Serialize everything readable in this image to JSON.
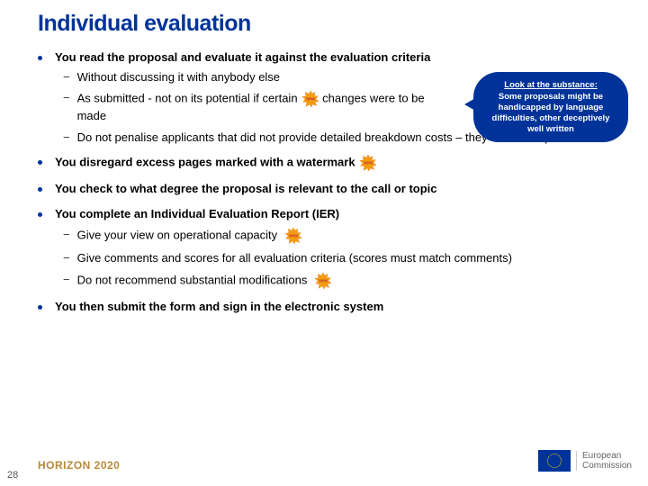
{
  "title": "Individual evaluation",
  "bullets": [
    {
      "text": "You read the proposal and evaluate it against the evaluation criteria",
      "subs": [
        {
          "text": "Without discussing it with anybody else",
          "new": false
        },
        {
          "text": "As submitted - not on its potential if certain changes were to be made",
          "new": true,
          "newInline": true
        },
        {
          "text": "Do not penalise applicants that did not provide detailed breakdown costs – they are not required",
          "new": false
        }
      ]
    },
    {
      "text": "You disregard excess pages marked with a watermark",
      "newAfter": true,
      "subs": []
    },
    {
      "text": "You check to what degree the proposal is relevant to the call or topic",
      "subs": []
    },
    {
      "text": "You complete an Individual Evaluation Report (IER)",
      "subs": [
        {
          "text": "Give your view on operational capacity",
          "new": true
        },
        {
          "text": "Give comments and scores for all evaluation criteria (scores must match comments)",
          "new": false
        },
        {
          "text": "Do not recommend substantial modifications",
          "new": true
        }
      ]
    },
    {
      "text": "You then submit the form and sign in the electronic system",
      "subs": []
    }
  ],
  "callout": {
    "title": "Look at the substance:",
    "body": "Some proposals might be handicapped by language difficulties, other deceptively well written"
  },
  "footer": {
    "program": "HORIZON 2020",
    "org1": "European",
    "org2": "Commission"
  },
  "pageNum": "28"
}
